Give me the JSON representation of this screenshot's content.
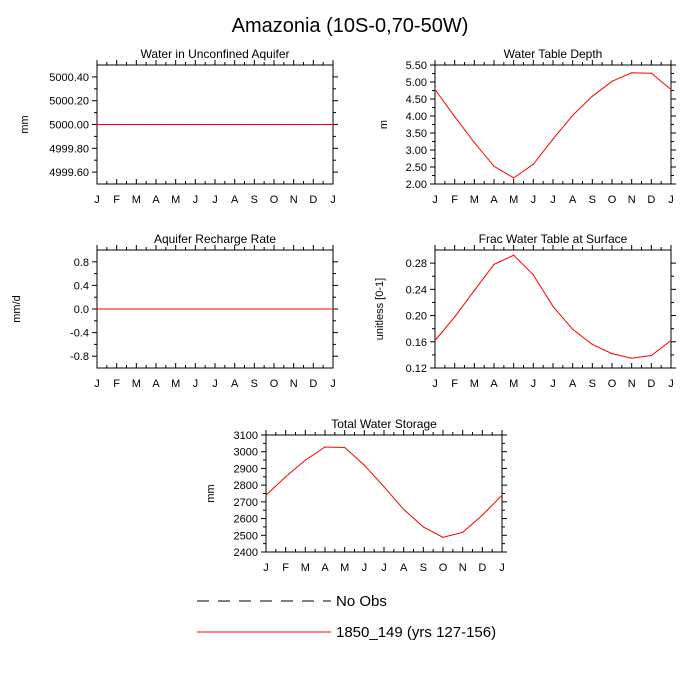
{
  "figure_title": "Amazonia (10S-0,70-50W)",
  "legend": [
    {
      "label": "No Obs",
      "color": "#000000",
      "style": "dashed"
    },
    {
      "label": "1850_149 (yrs 127-156)",
      "color": "#ff0000",
      "style": "solid"
    }
  ],
  "chart_data": [
    {
      "type": "line",
      "title": "Water in Unconfined Aquifer",
      "xlabel": "",
      "ylabel": "mm",
      "categories": [
        "J",
        "F",
        "M",
        "A",
        "M",
        "J",
        "J",
        "A",
        "S",
        "O",
        "N",
        "D",
        "J"
      ],
      "ylim": [
        4999.5,
        5000.5
      ],
      "yticks": [
        4999.6,
        4999.8,
        5000.0,
        5000.2,
        5000.4
      ],
      "ytick_labels": [
        "4999.60",
        "4999.80",
        "5000.00",
        "5000.20",
        "5000.40"
      ],
      "series": [
        {
          "values": [
            5000,
            5000,
            5000,
            5000,
            5000,
            5000,
            5000,
            5000,
            5000,
            5000,
            5000,
            5000,
            5000
          ],
          "color": "#ff0000"
        }
      ]
    },
    {
      "type": "line",
      "title": "Water Table Depth",
      "xlabel": "",
      "ylabel": "m",
      "categories": [
        "J",
        "F",
        "M",
        "A",
        "M",
        "J",
        "J",
        "A",
        "S",
        "O",
        "N",
        "D",
        "J"
      ],
      "ylim": [
        2.0,
        5.5
      ],
      "yticks": [
        2.0,
        2.5,
        3.0,
        3.5,
        4.0,
        4.5,
        5.0,
        5.5
      ],
      "ytick_labels": [
        "2.00",
        "2.50",
        "3.00",
        "3.50",
        "4.00",
        "4.50",
        "5.00",
        "5.50"
      ],
      "series": [
        {
          "values": [
            4.78,
            3.98,
            3.22,
            2.52,
            2.18,
            2.58,
            3.32,
            4.02,
            4.58,
            5.02,
            5.27,
            5.26,
            4.78
          ],
          "color": "#ff0000"
        }
      ]
    },
    {
      "type": "line",
      "title": "Aquifer Recharge Rate",
      "xlabel": "",
      "ylabel": "mm/d",
      "categories": [
        "J",
        "F",
        "M",
        "A",
        "M",
        "J",
        "J",
        "A",
        "S",
        "O",
        "N",
        "D",
        "J"
      ],
      "ylim": [
        -1.0,
        1.0
      ],
      "yticks": [
        -0.8,
        -0.4,
        0.0,
        0.4,
        0.8
      ],
      "ytick_labels": [
        "-0.8",
        "-0.4",
        "0.0",
        "0.4",
        "0.8"
      ],
      "series": [
        {
          "values": [
            0,
            0,
            0,
            0,
            0,
            0,
            0,
            0,
            0,
            0,
            0,
            0,
            0
          ],
          "color": "#ff0000"
        }
      ]
    },
    {
      "type": "line",
      "title": "Frac Water Table at Surface",
      "xlabel": "",
      "ylabel": "unitless [0-1]",
      "categories": [
        "J",
        "F",
        "M",
        "A",
        "M",
        "J",
        "J",
        "A",
        "S",
        "O",
        "N",
        "D",
        "J"
      ],
      "ylim": [
        0.12,
        0.3
      ],
      "yticks": [
        0.12,
        0.16,
        0.2,
        0.24,
        0.28
      ],
      "ytick_labels": [
        "0.12",
        "0.16",
        "0.20",
        "0.24",
        "0.28"
      ],
      "series": [
        {
          "values": [
            0.162,
            0.198,
            0.238,
            0.278,
            0.292,
            0.262,
            0.214,
            0.179,
            0.156,
            0.142,
            0.135,
            0.139,
            0.162
          ],
          "color": "#ff0000"
        }
      ]
    },
    {
      "type": "line",
      "title": "Total Water Storage",
      "xlabel": "",
      "ylabel": "mm",
      "categories": [
        "J",
        "F",
        "M",
        "A",
        "M",
        "J",
        "J",
        "A",
        "S",
        "O",
        "N",
        "D",
        "J"
      ],
      "ylim": [
        2400,
        3100
      ],
      "yticks": [
        2400,
        2500,
        2600,
        2700,
        2800,
        2900,
        3000,
        3100
      ],
      "ytick_labels": [
        "2400",
        "2500",
        "2600",
        "2700",
        "2800",
        "2900",
        "3000",
        "3100"
      ],
      "series": [
        {
          "values": [
            2740,
            2850,
            2950,
            3028,
            3025,
            2920,
            2790,
            2655,
            2550,
            2488,
            2518,
            2620,
            2740
          ],
          "color": "#ff0000"
        }
      ]
    }
  ]
}
